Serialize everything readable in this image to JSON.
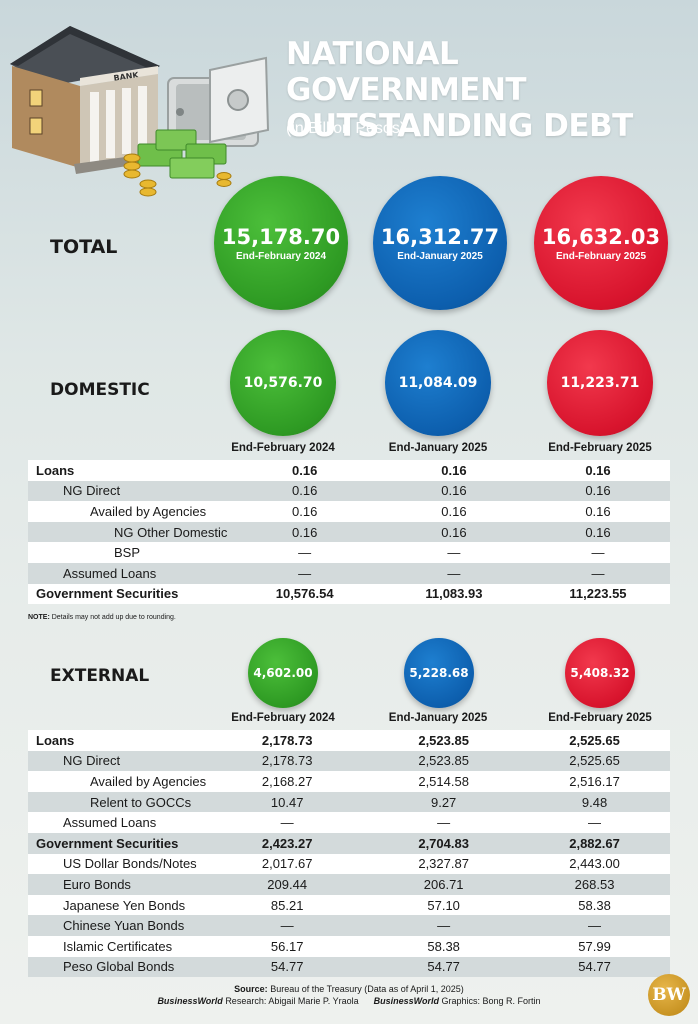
{
  "header": {
    "title": "NATIONAL GOVERNMENT OUTSTANDING DEBT",
    "subtitle": "(in Billion Pesos)",
    "bank_sign": "BANK"
  },
  "total": {
    "label": "TOTAL",
    "circles": [
      {
        "value": "15,178.70",
        "period": "End-February 2024",
        "color": "#2e9a23"
      },
      {
        "value": "16,312.77",
        "period": "End-January 2025",
        "color": "#0d5fae"
      },
      {
        "value": "16,632.03",
        "period": "End-February 2025",
        "color": "#d8142d"
      }
    ]
  },
  "domestic": {
    "label": "DOMESTIC",
    "circles": [
      {
        "value": "10,576.70",
        "color": "#2e9a23"
      },
      {
        "value": "11,084.09",
        "color": "#0d5fae"
      },
      {
        "value": "11,223.71",
        "color": "#d8142d"
      }
    ],
    "columns": [
      "End-February 2024",
      "End-January 2025",
      "End-February 2025"
    ],
    "rows": [
      {
        "label": "Loans",
        "level": 0,
        "bold": true,
        "values": [
          "0.16",
          "0.16",
          "0.16"
        ]
      },
      {
        "label": "NG Direct",
        "level": 1,
        "bold": false,
        "values": [
          "0.16",
          "0.16",
          "0.16"
        ]
      },
      {
        "label": "Availed by Agencies",
        "level": 2,
        "bold": false,
        "values": [
          "0.16",
          "0.16",
          "0.16"
        ]
      },
      {
        "label": "NG Other Domestic",
        "level": 3,
        "bold": false,
        "values": [
          "0.16",
          "0.16",
          "0.16"
        ]
      },
      {
        "label": "BSP",
        "level": 3,
        "bold": false,
        "values": [
          "—",
          "—",
          "—"
        ]
      },
      {
        "label": "Assumed Loans",
        "level": 1,
        "bold": false,
        "values": [
          "—",
          "—",
          "—"
        ]
      },
      {
        "label": "Government Securities",
        "level": 0,
        "bold": true,
        "values": [
          "10,576.54",
          "11,083.93",
          "11,223.55"
        ]
      }
    ],
    "note_label": "NOTE:",
    "note_text": "Details may not add up due to rounding."
  },
  "external": {
    "label": "EXTERNAL",
    "circles": [
      {
        "value": "4,602.00",
        "color": "#2e9a23"
      },
      {
        "value": "5,228.68",
        "color": "#0d5fae"
      },
      {
        "value": "5,408.32",
        "color": "#d8142d"
      }
    ],
    "columns": [
      "End-February 2024",
      "End-January 2025",
      "End-February 2025"
    ],
    "rows": [
      {
        "label": "Loans",
        "level": 0,
        "bold": true,
        "values": [
          "2,178.73",
          "2,523.85",
          "2,525.65"
        ]
      },
      {
        "label": "NG Direct",
        "level": 1,
        "bold": false,
        "values": [
          "2,178.73",
          "2,523.85",
          "2,525.65"
        ]
      },
      {
        "label": "Availed by Agencies",
        "level": 2,
        "bold": false,
        "values": [
          "2,168.27",
          "2,514.58",
          "2,516.17"
        ]
      },
      {
        "label": "Relent to GOCCs",
        "level": 2,
        "bold": false,
        "values": [
          "10.47",
          "9.27",
          "9.48"
        ]
      },
      {
        "label": "Assumed Loans",
        "level": 1,
        "bold": false,
        "values": [
          "—",
          "—",
          "—"
        ]
      },
      {
        "label": "Government Securities",
        "level": 0,
        "bold": true,
        "values": [
          "2,423.27",
          "2,704.83",
          "2,882.67"
        ]
      },
      {
        "label": "US Dollar Bonds/Notes",
        "level": 1,
        "bold": false,
        "values": [
          "2,017.67",
          "2,327.87",
          "2,443.00"
        ]
      },
      {
        "label": "Euro Bonds",
        "level": 1,
        "bold": false,
        "values": [
          "209.44",
          "206.71",
          "268.53"
        ]
      },
      {
        "label": "Japanese Yen Bonds",
        "level": 1,
        "bold": false,
        "values": [
          "85.21",
          "57.10",
          "58.38"
        ]
      },
      {
        "label": "Chinese Yuan Bonds",
        "level": 1,
        "bold": false,
        "values": [
          "—",
          "—",
          "—"
        ]
      },
      {
        "label": "Islamic Certificates",
        "level": 1,
        "bold": false,
        "values": [
          "56.17",
          "58.38",
          "57.99"
        ]
      },
      {
        "label": "Peso Global Bonds",
        "level": 1,
        "bold": false,
        "values": [
          "54.77",
          "54.77",
          "54.77"
        ]
      }
    ]
  },
  "footer": {
    "source_label": "Source:",
    "source_text": "Bureau of the Treasury (Data as of April 1, 2025)",
    "research_brand": "BusinessWorld",
    "research_label": "Research:",
    "research_name": "Abigail Marie P. Yraola",
    "graphics_brand": "BusinessWorld",
    "graphics_label": "Graphics:",
    "graphics_name": "Bong R. Fortin",
    "logo": "BW"
  },
  "chart_data": {
    "type": "table",
    "title": "NATIONAL GOVERNMENT OUTSTANDING DEBT",
    "subtitle": "(in Billion Pesos)",
    "categories": [
      "End-February 2024",
      "End-January 2025",
      "End-February 2025"
    ],
    "series": [
      {
        "name": "TOTAL",
        "values": [
          15178.7,
          16312.77,
          16632.03
        ]
      },
      {
        "name": "DOMESTIC",
        "values": [
          10576.7,
          11084.09,
          11223.71
        ]
      },
      {
        "name": "EXTERNAL",
        "values": [
          4602.0,
          5228.68,
          5408.32
        ]
      }
    ]
  }
}
